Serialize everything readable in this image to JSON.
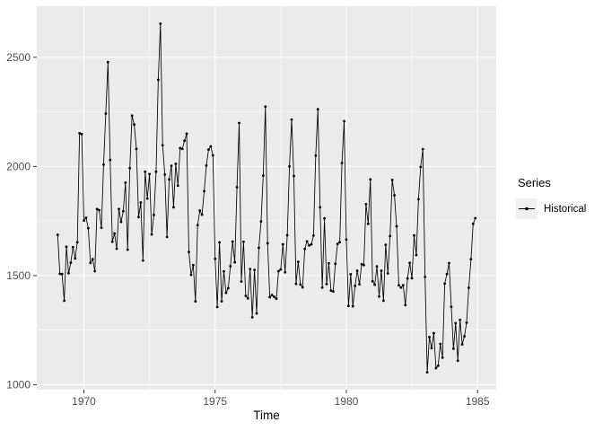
{
  "chart_data": {
    "type": "line",
    "title": "",
    "xlabel": "Time",
    "ylabel": "",
    "legend": {
      "title": "Series",
      "entries": [
        "Historical"
      ],
      "position": "right"
    },
    "x_start": 1969,
    "frequency": 12,
    "x_ticks": [
      1970,
      1975,
      1980,
      1985
    ],
    "x_minor_ticks": [
      1972.5,
      1977.5,
      1982.5
    ],
    "y_ticks": [
      1000,
      1500,
      2000,
      2500
    ],
    "y_minor_ticks": [
      1250,
      1750,
      2250
    ],
    "xlim": [
      1968.2042,
      1985.7125
    ],
    "ylim": [
      977.15,
      2733.85
    ],
    "grid": true,
    "theme": {
      "bg": "#FFFFFF",
      "panel_bg": "#EBEBEB",
      "grid_major": "#FFFFFF",
      "grid_minor": "#FFFFFF",
      "tick_label_color": "#4D4D4D",
      "tick_mark_color": "#333333",
      "axis_title_color": "#000000",
      "line_color": "#000000",
      "point_color": "#000000",
      "legend_key_bg": "#F0F0F0"
    },
    "values": [
      1687,
      1508,
      1507,
      1385,
      1632,
      1511,
      1559,
      1630,
      1579,
      1653,
      2152,
      2148,
      1752,
      1765,
      1717,
      1558,
      1575,
      1520,
      1805,
      1800,
      1719,
      2008,
      2242,
      2478,
      2030,
      1655,
      1693,
      1623,
      1805,
      1746,
      1795,
      1926,
      1619,
      1992,
      2233,
      2192,
      2080,
      1768,
      1835,
      1569,
      1976,
      1853,
      1965,
      1689,
      1778,
      1976,
      2397,
      2654,
      2097,
      1963,
      1677,
      1941,
      2003,
      1813,
      2012,
      1912,
      2084,
      2080,
      2118,
      2150,
      1608,
      1503,
      1548,
      1382,
      1731,
      1798,
      1779,
      1887,
      2004,
      2077,
      2092,
      2051,
      1577,
      1356,
      1652,
      1382,
      1519,
      1421,
      1442,
      1543,
      1656,
      1561,
      1905,
      2199,
      1473,
      1655,
      1407,
      1395,
      1530,
      1309,
      1526,
      1327,
      1627,
      1748,
      1958,
      2274,
      1648,
      1401,
      1411,
      1403,
      1394,
      1520,
      1528,
      1643,
      1515,
      1685,
      2000,
      2215,
      1956,
      1462,
      1563,
      1459,
      1446,
      1622,
      1657,
      1638,
      1643,
      1683,
      2050,
      2262,
      1813,
      1445,
      1762,
      1461,
      1556,
      1431,
      1427,
      1554,
      1645,
      1653,
      2016,
      2207,
      1665,
      1361,
      1506,
      1360,
      1453,
      1522,
      1460,
      1552,
      1548,
      1827,
      1737,
      1941,
      1474,
      1458,
      1542,
      1404,
      1522,
      1385,
      1641,
      1510,
      1681,
      1938,
      1868,
      1726,
      1456,
      1445,
      1456,
      1365,
      1487,
      1558,
      1488,
      1684,
      1594,
      1850,
      1998,
      2079,
      1494,
      1057,
      1218,
      1168,
      1236,
      1076,
      1087,
      1187,
      1124,
      1463,
      1507,
      1557,
      1357,
      1165,
      1282,
      1110,
      1297,
      1185,
      1222,
      1284,
      1444,
      1575,
      1737,
      1763
    ]
  }
}
